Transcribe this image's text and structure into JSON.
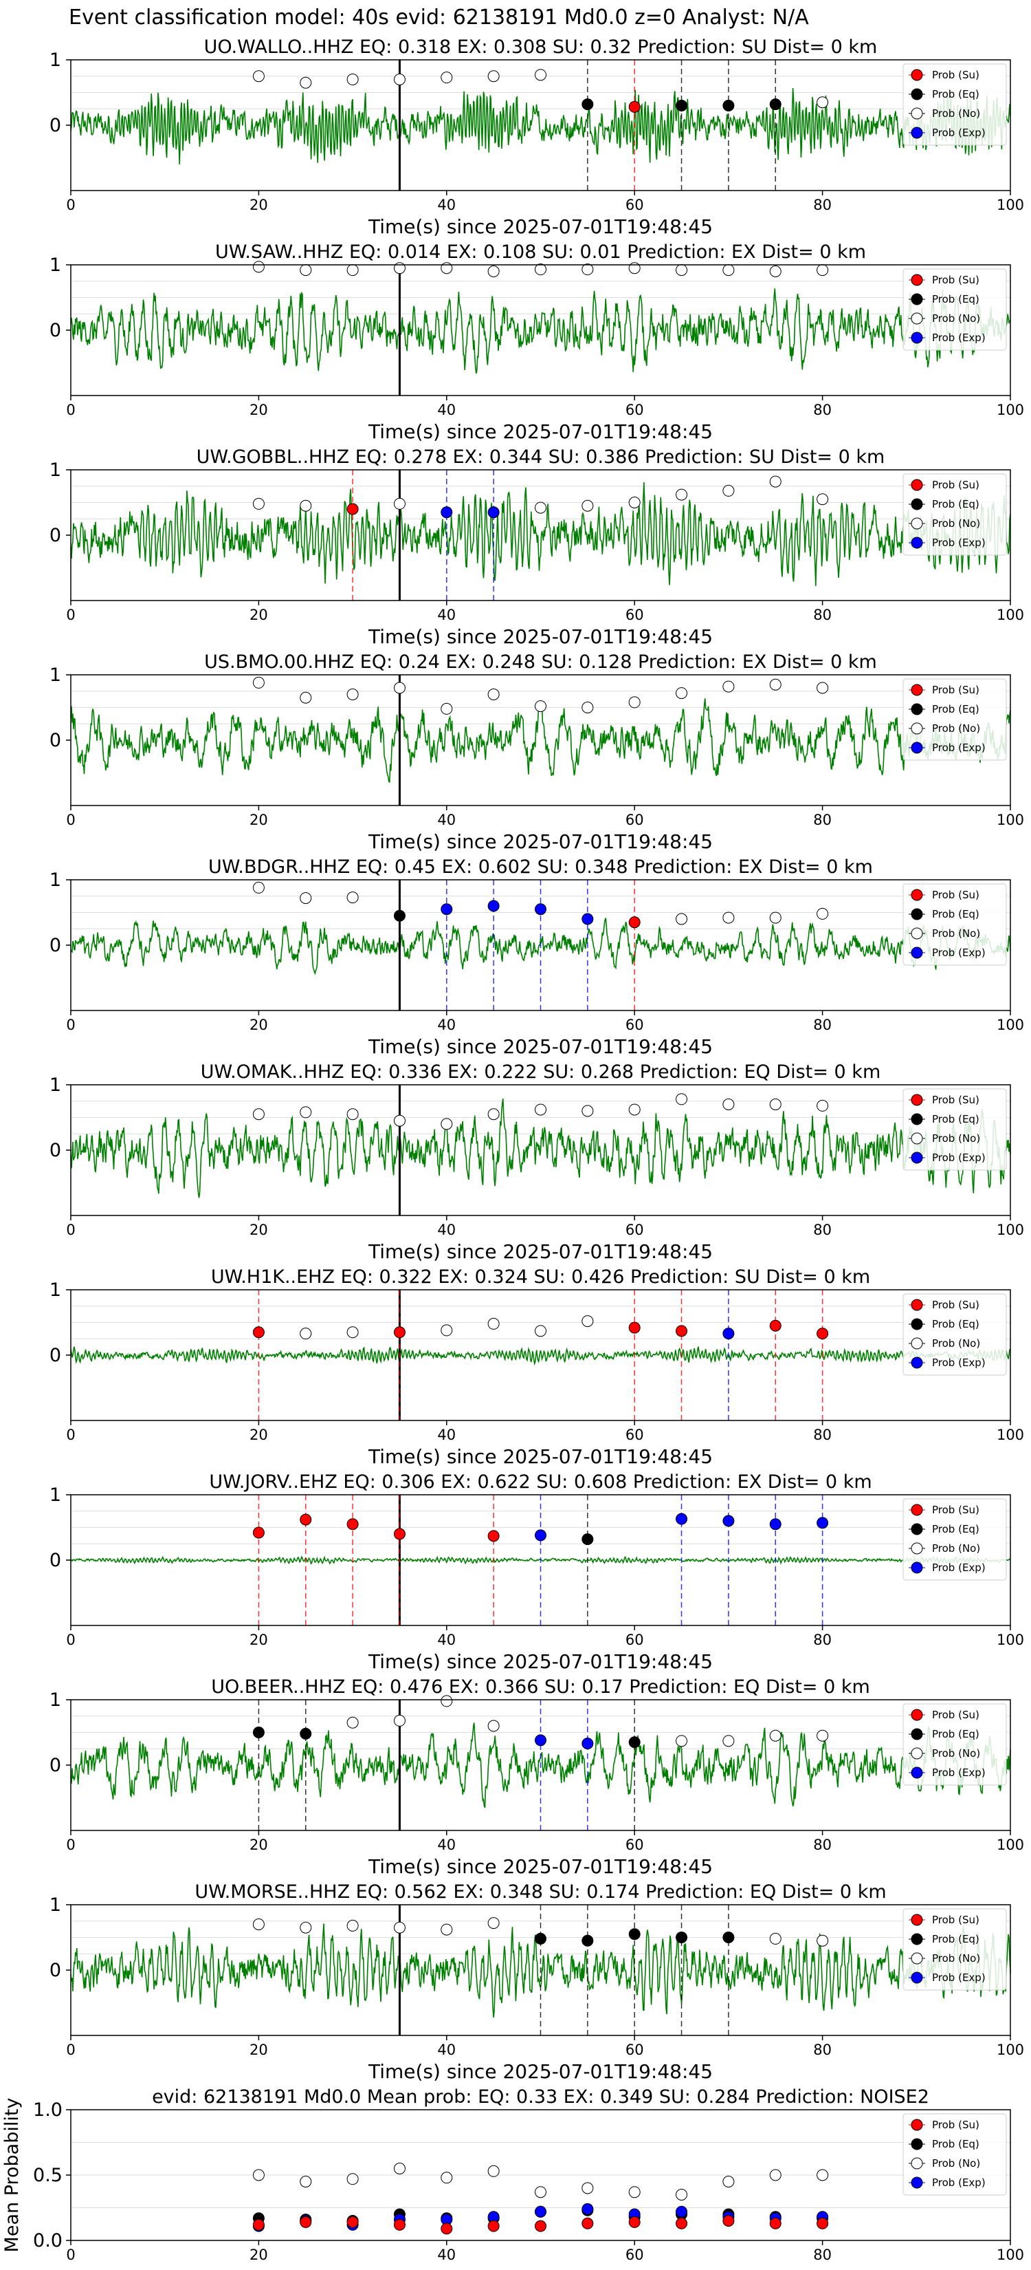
{
  "suptitle": "Event classification model: 40s evid: 62138191 Md0.0 z=0 Analyst: N/A",
  "colors": {
    "waveform": "#008000",
    "su": "#ff0000",
    "eq": "#000000",
    "no": "#ffffff",
    "exp": "#0000ff",
    "event_line": "#000000"
  },
  "legend": [
    "Prob (Su)",
    "Prob (Eq)",
    "Prob (No)",
    "Prob (Exp)"
  ],
  "xlabel": "Time(s) since 2025-07-01T19:48:45",
  "xticks": [
    "0",
    "20",
    "40",
    "60",
    "80",
    "100"
  ],
  "yticks_station": [
    "1",
    "0"
  ],
  "event_time": 35,
  "chart_data": [
    {
      "type": "line",
      "title": "UO.WALLO..HHZ   EQ: 0.318  EX: 0.308  SU: 0.32   Prediction: SU    Dist= 0 km",
      "xlabel": "Time(s) since 2025-07-01T19:48:45",
      "xlim": [
        0,
        100
      ],
      "ylim": [
        -1,
        1
      ],
      "waveform_amplitude": 0.55,
      "waveform_period_s": 0.35,
      "prob_points": [
        {
          "t": 20,
          "p": 0.75,
          "cls": "No"
        },
        {
          "t": 25,
          "p": 0.65,
          "cls": "No"
        },
        {
          "t": 30,
          "p": 0.7,
          "cls": "No"
        },
        {
          "t": 35,
          "p": 0.7,
          "cls": "No"
        },
        {
          "t": 40,
          "p": 0.73,
          "cls": "No"
        },
        {
          "t": 45,
          "p": 0.75,
          "cls": "No"
        },
        {
          "t": 50,
          "p": 0.77,
          "cls": "No"
        },
        {
          "t": 55,
          "p": 0.32,
          "cls": "Eq"
        },
        {
          "t": 60,
          "p": 0.28,
          "cls": "Su"
        },
        {
          "t": 65,
          "p": 0.3,
          "cls": "Eq"
        },
        {
          "t": 70,
          "p": 0.3,
          "cls": "Eq"
        },
        {
          "t": 75,
          "p": 0.32,
          "cls": "Eq"
        },
        {
          "t": 80,
          "p": 0.35,
          "cls": "No"
        }
      ]
    },
    {
      "type": "line",
      "title": "UW.SAW..HHZ   EQ: 0.014  EX: 0.108  SU: 0.01   Prediction: EX    Dist= 0 km",
      "xlabel": "Time(s) since 2025-07-01T19:48:45",
      "xlim": [
        0,
        100
      ],
      "ylim": [
        -1,
        1
      ],
      "waveform_amplitude": 0.65,
      "waveform_period_s": 1.2,
      "prob_points": [
        {
          "t": 20,
          "p": 0.97,
          "cls": "No"
        },
        {
          "t": 25,
          "p": 0.92,
          "cls": "No"
        },
        {
          "t": 30,
          "p": 0.92,
          "cls": "No"
        },
        {
          "t": 35,
          "p": 0.95,
          "cls": "No"
        },
        {
          "t": 40,
          "p": 0.95,
          "cls": "No"
        },
        {
          "t": 45,
          "p": 0.9,
          "cls": "No"
        },
        {
          "t": 50,
          "p": 0.93,
          "cls": "No"
        },
        {
          "t": 55,
          "p": 0.93,
          "cls": "No"
        },
        {
          "t": 60,
          "p": 0.95,
          "cls": "No"
        },
        {
          "t": 65,
          "p": 0.92,
          "cls": "No"
        },
        {
          "t": 70,
          "p": 0.92,
          "cls": "No"
        },
        {
          "t": 75,
          "p": 0.9,
          "cls": "No"
        },
        {
          "t": 80,
          "p": 0.92,
          "cls": "No"
        }
      ]
    },
    {
      "type": "line",
      "title": "UW.GOBBL..HHZ   EQ: 0.278  EX: 0.344  SU: 0.386   Prediction: SU    Dist= 0 km",
      "xlabel": "Time(s) since 2025-07-01T19:48:45",
      "xlim": [
        0,
        100
      ],
      "ylim": [
        -1,
        1
      ],
      "waveform_amplitude": 0.75,
      "waveform_period_s": 0.6,
      "prob_points": [
        {
          "t": 20,
          "p": 0.48,
          "cls": "No"
        },
        {
          "t": 25,
          "p": 0.45,
          "cls": "No"
        },
        {
          "t": 30,
          "p": 0.4,
          "cls": "Su"
        },
        {
          "t": 35,
          "p": 0.48,
          "cls": "No"
        },
        {
          "t": 40,
          "p": 0.35,
          "cls": "Exp"
        },
        {
          "t": 45,
          "p": 0.35,
          "cls": "Exp"
        },
        {
          "t": 50,
          "p": 0.42,
          "cls": "No"
        },
        {
          "t": 55,
          "p": 0.45,
          "cls": "No"
        },
        {
          "t": 60,
          "p": 0.5,
          "cls": "No"
        },
        {
          "t": 65,
          "p": 0.62,
          "cls": "No"
        },
        {
          "t": 70,
          "p": 0.68,
          "cls": "No"
        },
        {
          "t": 75,
          "p": 0.82,
          "cls": "No"
        },
        {
          "t": 80,
          "p": 0.55,
          "cls": "No"
        }
      ]
    },
    {
      "type": "line",
      "title": "US.BMO.00.HHZ   EQ: 0.24  EX: 0.248  SU: 0.128   Prediction: EX    Dist= 0 km",
      "xlabel": "Time(s) since 2025-07-01T19:48:45",
      "xlim": [
        0,
        100
      ],
      "ylim": [
        -1,
        1
      ],
      "waveform_amplitude": 0.6,
      "waveform_period_s": 2.5,
      "prob_points": [
        {
          "t": 20,
          "p": 0.88,
          "cls": "No"
        },
        {
          "t": 25,
          "p": 0.65,
          "cls": "No"
        },
        {
          "t": 30,
          "p": 0.7,
          "cls": "No"
        },
        {
          "t": 35,
          "p": 0.8,
          "cls": "No"
        },
        {
          "t": 40,
          "p": 0.48,
          "cls": "No"
        },
        {
          "t": 45,
          "p": 0.7,
          "cls": "No"
        },
        {
          "t": 50,
          "p": 0.52,
          "cls": "No"
        },
        {
          "t": 55,
          "p": 0.5,
          "cls": "No"
        },
        {
          "t": 60,
          "p": 0.58,
          "cls": "No"
        },
        {
          "t": 65,
          "p": 0.72,
          "cls": "No"
        },
        {
          "t": 70,
          "p": 0.82,
          "cls": "No"
        },
        {
          "t": 75,
          "p": 0.85,
          "cls": "No"
        },
        {
          "t": 80,
          "p": 0.8,
          "cls": "No"
        }
      ]
    },
    {
      "type": "line",
      "title": "UW.BDGR..HHZ   EQ: 0.45  EX: 0.602  SU: 0.348   Prediction: EX    Dist= 0 km",
      "xlabel": "Time(s) since 2025-07-01T19:48:45",
      "xlim": [
        0,
        100
      ],
      "ylim": [
        -1,
        1
      ],
      "waveform_amplitude": 0.4,
      "waveform_period_s": 2.0,
      "prob_points": [
        {
          "t": 20,
          "p": 0.88,
          "cls": "No"
        },
        {
          "t": 25,
          "p": 0.72,
          "cls": "No"
        },
        {
          "t": 30,
          "p": 0.73,
          "cls": "No"
        },
        {
          "t": 35,
          "p": 0.45,
          "cls": "Eq"
        },
        {
          "t": 40,
          "p": 0.55,
          "cls": "Exp"
        },
        {
          "t": 45,
          "p": 0.6,
          "cls": "Exp"
        },
        {
          "t": 50,
          "p": 0.55,
          "cls": "Exp"
        },
        {
          "t": 55,
          "p": 0.4,
          "cls": "Exp"
        },
        {
          "t": 60,
          "p": 0.35,
          "cls": "Su"
        },
        {
          "t": 65,
          "p": 0.4,
          "cls": "No"
        },
        {
          "t": 70,
          "p": 0.42,
          "cls": "No"
        },
        {
          "t": 75,
          "p": 0.42,
          "cls": "No"
        },
        {
          "t": 80,
          "p": 0.48,
          "cls": "No"
        }
      ]
    },
    {
      "type": "line",
      "title": "UW.OMAK..HHZ   EQ: 0.336  EX: 0.222  SU: 0.268   Prediction: EQ    Dist= 0 km",
      "xlabel": "Time(s) since 2025-07-01T19:48:45",
      "xlim": [
        0,
        100
      ],
      "ylim": [
        -1,
        1
      ],
      "waveform_amplitude": 0.7,
      "waveform_period_s": 1.5,
      "prob_points": [
        {
          "t": 20,
          "p": 0.55,
          "cls": "No"
        },
        {
          "t": 25,
          "p": 0.58,
          "cls": "No"
        },
        {
          "t": 30,
          "p": 0.55,
          "cls": "No"
        },
        {
          "t": 35,
          "p": 0.45,
          "cls": "No"
        },
        {
          "t": 40,
          "p": 0.4,
          "cls": "No"
        },
        {
          "t": 45,
          "p": 0.55,
          "cls": "No"
        },
        {
          "t": 50,
          "p": 0.62,
          "cls": "No"
        },
        {
          "t": 55,
          "p": 0.6,
          "cls": "No"
        },
        {
          "t": 60,
          "p": 0.62,
          "cls": "No"
        },
        {
          "t": 65,
          "p": 0.78,
          "cls": "No"
        },
        {
          "t": 70,
          "p": 0.7,
          "cls": "No"
        },
        {
          "t": 75,
          "p": 0.7,
          "cls": "No"
        },
        {
          "t": 80,
          "p": 0.68,
          "cls": "No"
        }
      ]
    },
    {
      "type": "line",
      "title": "UW.H1K..EHZ   EQ: 0.322  EX: 0.324  SU: 0.426   Prediction: SU    Dist= 0 km",
      "xlabel": "Time(s) since 2025-07-01T19:48:45",
      "xlim": [
        0,
        100
      ],
      "ylim": [
        -1,
        1
      ],
      "waveform_amplitude": 0.12,
      "waveform_period_s": 0.4,
      "prob_points": [
        {
          "t": 20,
          "p": 0.35,
          "cls": "Su"
        },
        {
          "t": 25,
          "p": 0.33,
          "cls": "No"
        },
        {
          "t": 30,
          "p": 0.35,
          "cls": "No"
        },
        {
          "t": 35,
          "p": 0.35,
          "cls": "Su"
        },
        {
          "t": 40,
          "p": 0.38,
          "cls": "No"
        },
        {
          "t": 45,
          "p": 0.48,
          "cls": "No"
        },
        {
          "t": 50,
          "p": 0.37,
          "cls": "No"
        },
        {
          "t": 55,
          "p": 0.52,
          "cls": "No"
        },
        {
          "t": 60,
          "p": 0.42,
          "cls": "Su"
        },
        {
          "t": 65,
          "p": 0.37,
          "cls": "Su"
        },
        {
          "t": 70,
          "p": 0.33,
          "cls": "Exp"
        },
        {
          "t": 75,
          "p": 0.45,
          "cls": "Su"
        },
        {
          "t": 80,
          "p": 0.33,
          "cls": "Su"
        }
      ]
    },
    {
      "type": "line",
      "title": "UW.JORV..EHZ   EQ: 0.306  EX: 0.622  SU: 0.608   Prediction: EX    Dist= 0 km",
      "xlabel": "Time(s) since 2025-07-01T19:48:45",
      "xlim": [
        0,
        100
      ],
      "ylim": [
        -1,
        1
      ],
      "waveform_amplitude": 0.05,
      "waveform_period_s": 0.4,
      "prob_points": [
        {
          "t": 20,
          "p": 0.42,
          "cls": "Su"
        },
        {
          "t": 25,
          "p": 0.62,
          "cls": "Su"
        },
        {
          "t": 30,
          "p": 0.55,
          "cls": "Su"
        },
        {
          "t": 35,
          "p": 0.4,
          "cls": "Su"
        },
        {
          "t": 45,
          "p": 0.37,
          "cls": "Su"
        },
        {
          "t": 50,
          "p": 0.38,
          "cls": "Exp"
        },
        {
          "t": 55,
          "p": 0.32,
          "cls": "Eq"
        },
        {
          "t": 65,
          "p": 0.63,
          "cls": "Exp"
        },
        {
          "t": 70,
          "p": 0.6,
          "cls": "Exp"
        },
        {
          "t": 75,
          "p": 0.55,
          "cls": "Exp"
        },
        {
          "t": 80,
          "p": 0.57,
          "cls": "Exp"
        }
      ]
    },
    {
      "type": "line",
      "title": "UO.BEER..HHZ   EQ: 0.476  EX: 0.366  SU: 0.17   Prediction: EQ    Dist= 0 km",
      "xlabel": "Time(s) since 2025-07-01T19:48:45",
      "xlim": [
        0,
        100
      ],
      "ylim": [
        -1,
        1
      ],
      "waveform_amplitude": 0.6,
      "waveform_period_s": 2.2,
      "prob_points": [
        {
          "t": 20,
          "p": 0.5,
          "cls": "Eq"
        },
        {
          "t": 25,
          "p": 0.48,
          "cls": "Eq"
        },
        {
          "t": 30,
          "p": 0.65,
          "cls": "No"
        },
        {
          "t": 35,
          "p": 0.68,
          "cls": "No"
        },
        {
          "t": 40,
          "p": 0.98,
          "cls": "No"
        },
        {
          "t": 45,
          "p": 0.6,
          "cls": "No"
        },
        {
          "t": 50,
          "p": 0.38,
          "cls": "Exp"
        },
        {
          "t": 55,
          "p": 0.33,
          "cls": "Exp"
        },
        {
          "t": 60,
          "p": 0.35,
          "cls": "Eq"
        },
        {
          "t": 65,
          "p": 0.37,
          "cls": "No"
        },
        {
          "t": 70,
          "p": 0.37,
          "cls": "No"
        },
        {
          "t": 75,
          "p": 0.45,
          "cls": "No"
        },
        {
          "t": 80,
          "p": 0.45,
          "cls": "No"
        }
      ]
    },
    {
      "type": "line",
      "title": "UW.MORSE..HHZ   EQ: 0.562  EX: 0.348  SU: 0.174   Prediction: EQ    Dist= 0 km",
      "xlabel": "Time(s) since 2025-07-01T19:48:45",
      "xlim": [
        0,
        100
      ],
      "ylim": [
        -1,
        1
      ],
      "waveform_amplitude": 0.65,
      "waveform_period_s": 0.8,
      "prob_points": [
        {
          "t": 20,
          "p": 0.7,
          "cls": "No"
        },
        {
          "t": 25,
          "p": 0.65,
          "cls": "No"
        },
        {
          "t": 30,
          "p": 0.68,
          "cls": "No"
        },
        {
          "t": 35,
          "p": 0.65,
          "cls": "No"
        },
        {
          "t": 40,
          "p": 0.62,
          "cls": "No"
        },
        {
          "t": 45,
          "p": 0.72,
          "cls": "No"
        },
        {
          "t": 50,
          "p": 0.48,
          "cls": "Eq"
        },
        {
          "t": 55,
          "p": 0.45,
          "cls": "Eq"
        },
        {
          "t": 60,
          "p": 0.55,
          "cls": "Eq"
        },
        {
          "t": 65,
          "p": 0.5,
          "cls": "Eq"
        },
        {
          "t": 70,
          "p": 0.5,
          "cls": "Eq"
        },
        {
          "t": 75,
          "p": 0.48,
          "cls": "No"
        },
        {
          "t": 80,
          "p": 0.45,
          "cls": "No"
        }
      ]
    },
    {
      "type": "scatter",
      "title": "evid: 62138191  Md0.0   Mean prob:   EQ: 0.33  EX: 0.349  SU: 0.284   Prediction: NOISE2",
      "ylabel": "Mean Probability",
      "xlim": [
        0,
        100
      ],
      "ylim": [
        0,
        1
      ],
      "yticks": [
        "1.0",
        "0.5",
        "0.0"
      ],
      "series": [
        {
          "name": "Prob (No)",
          "x": [
            20,
            25,
            30,
            35,
            40,
            45,
            50,
            55,
            60,
            65,
            70,
            75,
            80
          ],
          "y": [
            0.5,
            0.45,
            0.47,
            0.55,
            0.48,
            0.53,
            0.37,
            0.4,
            0.37,
            0.35,
            0.45,
            0.5,
            0.5
          ]
        },
        {
          "name": "Prob (Eq)",
          "x": [
            20,
            25,
            30,
            35,
            40,
            45,
            50,
            55,
            60,
            65,
            70,
            75,
            80
          ],
          "y": [
            0.17,
            0.16,
            0.15,
            0.2,
            0.17,
            0.17,
            0.22,
            0.23,
            0.18,
            0.2,
            0.2,
            0.18,
            0.17
          ]
        },
        {
          "name": "Prob (Exp)",
          "x": [
            20,
            25,
            30,
            35,
            40,
            45,
            50,
            55,
            60,
            65,
            70,
            75,
            80
          ],
          "y": [
            0.11,
            0.15,
            0.12,
            0.16,
            0.16,
            0.18,
            0.22,
            0.24,
            0.2,
            0.22,
            0.18,
            0.17,
            0.18
          ]
        },
        {
          "name": "Prob (Su)",
          "x": [
            20,
            25,
            30,
            35,
            40,
            45,
            50,
            55,
            60,
            65,
            70,
            75,
            80
          ],
          "y": [
            0.12,
            0.14,
            0.14,
            0.12,
            0.09,
            0.11,
            0.11,
            0.13,
            0.14,
            0.13,
            0.15,
            0.13,
            0.13
          ]
        }
      ]
    }
  ]
}
